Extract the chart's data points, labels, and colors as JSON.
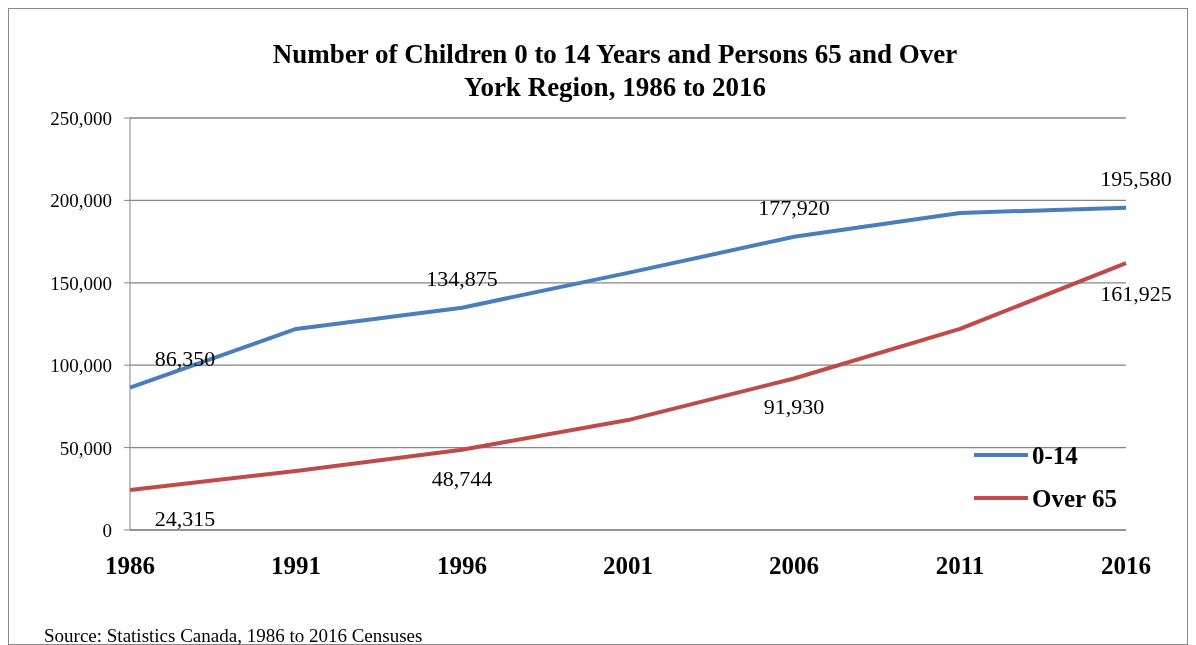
{
  "chart_data": {
    "type": "line",
    "title": "Number of Children 0 to 14 Years and Persons 65 and Over\nYork Region, 1986 to 2016",
    "categories": [
      "1986",
      "1991",
      "1996",
      "2001",
      "2006",
      "2011",
      "2016"
    ],
    "series": [
      {
        "name": "0-14",
        "color": "#4a7ebb",
        "values": [
          86350,
          122000,
          134875,
          156000,
          177920,
          192400,
          195580
        ],
        "value_labels": [
          "86,350",
          null,
          "134,875",
          null,
          "177,920",
          null,
          "195,580"
        ]
      },
      {
        "name": "Over 65",
        "color": "#be4b48",
        "values": [
          24315,
          35800,
          48744,
          66700,
          91930,
          122000,
          161925
        ],
        "value_labels": [
          "24,315",
          null,
          "48,744",
          null,
          "91,930",
          null,
          "161,925"
        ]
      }
    ],
    "ylim": [
      0,
      250000
    ],
    "yticks": [
      {
        "value": 0,
        "label": "0"
      },
      {
        "value": 50000,
        "label": "50,000"
      },
      {
        "value": 100000,
        "label": "100,000"
      },
      {
        "value": 150000,
        "label": "150,000"
      },
      {
        "value": 200000,
        "label": "200,000"
      },
      {
        "value": 250000,
        "label": "250,000"
      }
    ],
    "grid": "y",
    "legend": "bottom right",
    "marker": "none",
    "line_style": "solid",
    "annotations": [
      "Source: Statistics Canada, 1986 to 2016 Censuses"
    ]
  }
}
